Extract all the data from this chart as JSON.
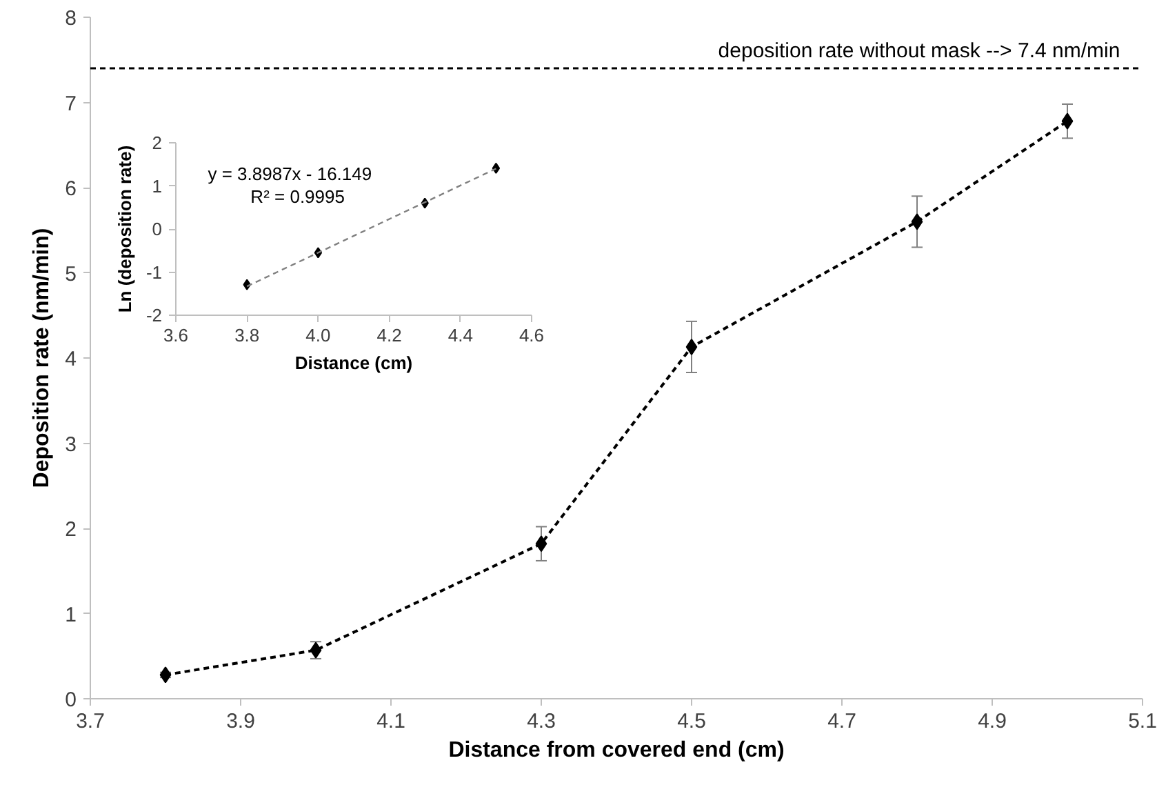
{
  "chart_data": [
    {
      "type": "line",
      "xlabel": "Distance from covered end (cm)",
      "ylabel": "Deposition rate (nm/min)",
      "xlim": [
        3.7,
        5.1
      ],
      "xticks": [
        3.7,
        3.9,
        4.1,
        4.3,
        4.5,
        4.7,
        4.9,
        5.1
      ],
      "ylim": [
        0,
        8
      ],
      "yticks": [
        0,
        1,
        2,
        3,
        4,
        5,
        6,
        7,
        8
      ],
      "grid": false,
      "marker": "diamond",
      "line_style": "dashed",
      "series": [
        {
          "color": "#000000",
          "x": [
            3.8,
            4.0,
            4.3,
            4.5,
            4.8,
            5.0
          ],
          "values": [
            0.28,
            0.57,
            1.82,
            4.13,
            5.6,
            6.78
          ],
          "errors": [
            0.03,
            0.1,
            0.2,
            0.3,
            0.3,
            0.2
          ]
        }
      ],
      "ref_lines": [
        {
          "axis": "y",
          "value": 7.4,
          "label": "deposition rate without mask -->  7.4  nm/min",
          "color": "#000000",
          "line_style": "dashed"
        }
      ]
    },
    {
      "type": "scatter",
      "xlabel": "Distance (cm)",
      "ylabel": "Ln (deposition rate)",
      "xlim": [
        3.6,
        4.6
      ],
      "xticks": [
        3.6,
        3.8,
        {
          "value": 4.0,
          "label": "4.0"
        },
        4.2,
        4.4,
        4.6
      ],
      "ylim": [
        -2,
        2
      ],
      "yticks": [
        -2,
        -1,
        0,
        1,
        2
      ],
      "grid": false,
      "marker": "diamond",
      "series": [
        {
          "color": "#000000",
          "x": [
            3.8,
            4.0,
            4.3,
            4.5
          ],
          "values": [
            -1.29,
            -0.55,
            0.6,
            1.41
          ]
        },
        {
          "type": "line",
          "color": "#808080",
          "line_style": "dashed",
          "marker": "none",
          "x": [
            3.8,
            4.5
          ],
          "values": [
            -1.33,
            1.4
          ]
        }
      ],
      "annotations": [
        "y = 3.8987x - 16.149",
        "R² = 0.9995"
      ]
    }
  ]
}
